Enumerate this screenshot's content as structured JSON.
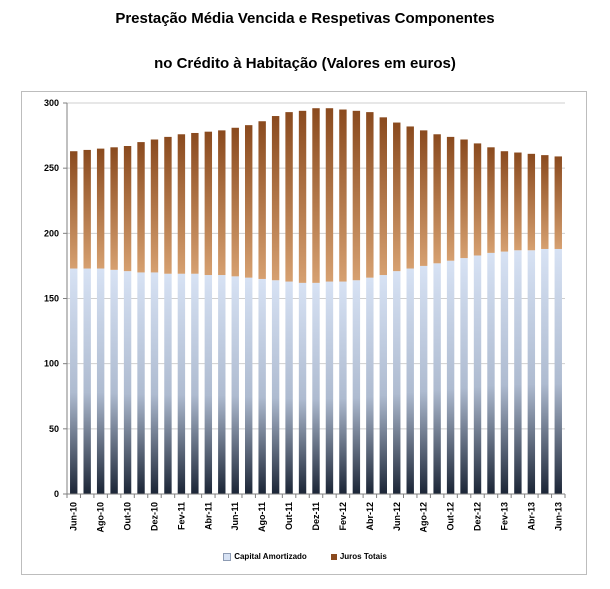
{
  "title_line1": "Prestação Média Vencida e Respetivas Componentes",
  "title_line2": "no Crédito à Habitação (Valores em euros)",
  "colors": {
    "capital_top": "#d7e2f4",
    "capital_bottom": "#1b2536",
    "juros_top": "#8a4a1e",
    "juros_bottom": "#d6a070",
    "grid": "#cfcfcf"
  },
  "chart_data": {
    "type": "bar",
    "stacked": true,
    "ylim": [
      0,
      300
    ],
    "yticks": [
      0,
      50,
      100,
      150,
      200,
      250,
      300
    ],
    "grid": true,
    "legend_position": "bottom",
    "categories": [
      "Jun-10",
      "Jul-10",
      "Ago-10",
      "Set-10",
      "Out-10",
      "Nov-10",
      "Dez-10",
      "Jan-11",
      "Fev-11",
      "Mar-11",
      "Abr-11",
      "Mai-11",
      "Jun-11",
      "Jul-11",
      "Ago-11",
      "Set-11",
      "Out-11",
      "Nov-11",
      "Dez-11",
      "Jan-12",
      "Fev-12",
      "Mar-12",
      "Abr-12",
      "Mai-12",
      "Jun-12",
      "Jul-12",
      "Ago-12",
      "Set-12",
      "Out-12",
      "Nov-12",
      "Dez-12",
      "Jan-13",
      "Fev-13",
      "Mar-13",
      "Abr-13",
      "Mai-13",
      "Jun-13"
    ],
    "tick_labels": [
      "Jun-10",
      "Ago-10",
      "Out-10",
      "Dez-10",
      "Fev-11",
      "Abr-11",
      "Jun-11",
      "Ago-11",
      "Out-11",
      "Dez-11",
      "Fev-12",
      "Abr-12",
      "Jun-12",
      "Ago-12",
      "Out-12",
      "Dez-12",
      "Fev-13",
      "Abr-13",
      "Jun-13"
    ],
    "series": [
      {
        "name": "Capital Amortizado",
        "values": [
          173,
          173,
          173,
          172,
          171,
          170,
          170,
          169,
          169,
          169,
          168,
          168,
          167,
          166,
          165,
          164,
          163,
          162,
          162,
          163,
          163,
          164,
          166,
          168,
          171,
          173,
          175,
          177,
          179,
          181,
          183,
          185,
          186,
          187,
          187,
          188,
          188
        ]
      },
      {
        "name": "Juros Totais",
        "values": [
          90,
          91,
          92,
          94,
          96,
          100,
          102,
          105,
          107,
          108,
          110,
          111,
          114,
          117,
          121,
          126,
          130,
          132,
          134,
          133,
          132,
          130,
          127,
          121,
          114,
          109,
          104,
          99,
          95,
          91,
          86,
          81,
          77,
          75,
          74,
          72,
          71
        ]
      }
    ]
  }
}
